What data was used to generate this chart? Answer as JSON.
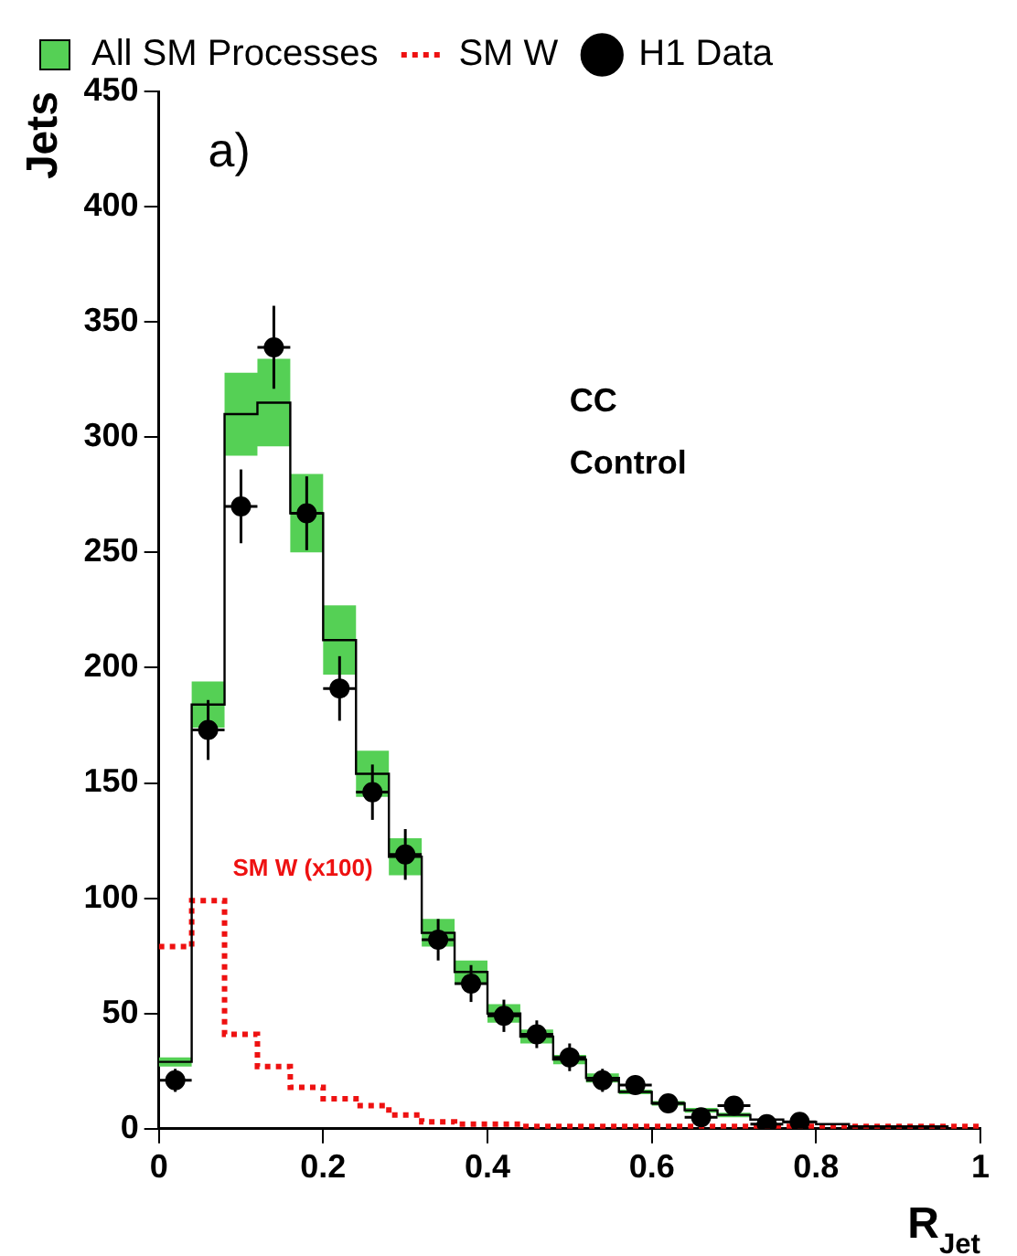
{
  "chart_data": {
    "type": "histogram",
    "xlabel": "R$_{Jet}$",
    "ylabel": "Jets",
    "bins": [
      0,
      0.04,
      0.08,
      0.12,
      0.16,
      0.2,
      0.24,
      0.28,
      0.32,
      0.36,
      0.4,
      0.44,
      0.48,
      0.52,
      0.56,
      0.6,
      0.64,
      0.68,
      0.72,
      0.76,
      0.8,
      0.84,
      0.88,
      0.92,
      0.96,
      1
    ],
    "series": [
      {
        "name": "All SM Processes",
        "type": "step",
        "x": [
          0,
          0.04,
          0.08,
          0.12,
          0.16,
          0.2,
          0.24,
          0.28,
          0.32,
          0.36,
          0.4,
          0.44,
          0.48,
          0.52,
          0.56,
          0.6,
          0.64,
          0.68,
          0.72,
          0.76,
          0.8,
          0.84,
          0.88,
          0.92,
          0.96
        ],
        "color": "#000000",
        "values": [
          29,
          184,
          310,
          315,
          267,
          212,
          154,
          118,
          85,
          68,
          50,
          40,
          30,
          22,
          16,
          11,
          8,
          6,
          4,
          3,
          2,
          1,
          1,
          1,
          0
        ],
        "lower": [
          27,
          174,
          292,
          296,
          250,
          197,
          144,
          110,
          79,
          63,
          46,
          37,
          28,
          20,
          15,
          10,
          7,
          5,
          4,
          3,
          2,
          1,
          1,
          1,
          0
        ],
        "upper": [
          31,
          194,
          328,
          334,
          284,
          227,
          164,
          126,
          91,
          73,
          54,
          43,
          32,
          24,
          17,
          12,
          9,
          7,
          4,
          3,
          2,
          1,
          1,
          1,
          0
        ]
      },
      {
        "name": "SM W",
        "color": "#ee1111",
        "line_style": "dotted",
        "values": [
          79,
          99,
          41,
          27,
          18,
          13,
          10,
          6,
          3,
          2,
          2,
          1,
          1,
          1,
          1,
          1,
          1,
          1,
          1,
          1,
          1,
          1,
          1,
          1,
          1
        ]
      },
      {
        "name": "H1 Data",
        "type": "scatter",
        "color": "#000000",
        "marker": "circle",
        "x": [
          0.02,
          0.06,
          0.1,
          0.14,
          0.18,
          0.22,
          0.26,
          0.3,
          0.34,
          0.38,
          0.42,
          0.46,
          0.5,
          0.54,
          0.58,
          0.62,
          0.66,
          0.7,
          0.74,
          0.78
        ],
        "values": [
          21,
          173,
          270,
          339,
          267,
          191,
          146,
          119,
          82,
          63,
          49,
          41,
          31,
          21,
          19,
          11,
          5,
          10,
          2,
          3
        ],
        "errors": [
          5,
          13,
          16,
          18,
          16,
          14,
          12,
          11,
          9,
          8,
          7,
          6,
          6,
          5,
          4,
          3,
          2,
          3,
          1,
          2
        ],
        "xerrors": [
          0.02,
          0.02,
          0.02,
          0.02,
          0.02,
          0.02,
          0.02,
          0.02,
          0.02,
          0.02,
          0.02,
          0.02,
          0.02,
          0.02,
          0.02,
          0.02,
          0.02,
          0.02,
          0.02,
          0.02
        ]
      }
    ],
    "xlim": [
      0,
      1
    ],
    "xticks": [
      0,
      0.2,
      0.4,
      0.6,
      0.8,
      1
    ],
    "ylim": [
      0,
      450
    ],
    "yticks": [
      0,
      50,
      100,
      150,
      200,
      250,
      300,
      350,
      400,
      450
    ],
    "grid": false,
    "legend": "top",
    "annotations": [
      "a)",
      "CC",
      "Control",
      "SM W (x100)"
    ]
  }
}
